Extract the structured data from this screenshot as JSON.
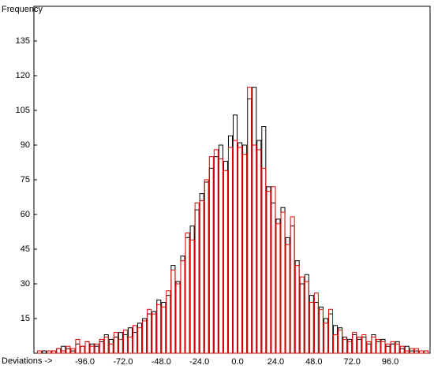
{
  "chart_data": {
    "type": "histogram",
    "ylabel": "Frequency",
    "xlabel": "Deviations ->",
    "bins": [
      -126,
      -123,
      -120,
      -117,
      -114,
      -111,
      -108,
      -105,
      -102,
      -99,
      -96,
      -93,
      -90,
      -87,
      -84,
      -81,
      -78,
      -75,
      -72,
      -69,
      -66,
      -63,
      -60,
      -57,
      -54,
      -51,
      -48,
      -45,
      -42,
      -39,
      -36,
      -33,
      -30,
      -27,
      -24,
      -21,
      -18,
      -15,
      -12,
      -9,
      -6,
      -3,
      0,
      3,
      6,
      9,
      12,
      15,
      18,
      21,
      24,
      27,
      30,
      33,
      36,
      39,
      42,
      45,
      48,
      51,
      54,
      57,
      60,
      63,
      66,
      69,
      72,
      75,
      78,
      81,
      84,
      87,
      90,
      93,
      96,
      99,
      102,
      105,
      108,
      111,
      114,
      117,
      120
    ],
    "series": [
      {
        "color": "#000000",
        "values": [
          0,
          1,
          0,
          1,
          2,
          3,
          2,
          1,
          4,
          3,
          5,
          4,
          3,
          5,
          8,
          6,
          7,
          9,
          8,
          11,
          9,
          13,
          15,
          17,
          18,
          23,
          22,
          25,
          38,
          31,
          42,
          50,
          55,
          62,
          69,
          74,
          80,
          85,
          90,
          83,
          94,
          103,
          91,
          90,
          110,
          115,
          92,
          98,
          72,
          65,
          58,
          63,
          50,
          55,
          40,
          30,
          34,
          25,
          22,
          20,
          15,
          17,
          12,
          11,
          7,
          6,
          8,
          6,
          7,
          4,
          8,
          5,
          6,
          3,
          4,
          5,
          2,
          3,
          1,
          1,
          0,
          1
        ],
        "outline": true
      },
      {
        "color": "#dd0000",
        "values": [
          1,
          0,
          1,
          1,
          2,
          1,
          3,
          2,
          6,
          3,
          5,
          3,
          4,
          6,
          7,
          4,
          9,
          6,
          10,
          7,
          12,
          11,
          14,
          19,
          17,
          21,
          20,
          27,
          36,
          30,
          40,
          52,
          49,
          65,
          66,
          75,
          85,
          88,
          84,
          79,
          89,
          92,
          89,
          86,
          115,
          90,
          88,
          80,
          70,
          72,
          56,
          61,
          47,
          59,
          38,
          33,
          31,
          22,
          26,
          19,
          13,
          19,
          8,
          10,
          6,
          5,
          9,
          7,
          8,
          5,
          7,
          6,
          5,
          4,
          5,
          4,
          3,
          1,
          2,
          2,
          1,
          1
        ],
        "outline": true
      }
    ],
    "xlim": [
      -128,
      121
    ],
    "ylim": [
      0,
      150
    ],
    "xticks": [
      {
        "value": -96,
        "label": "-96.0"
      },
      {
        "value": -72,
        "label": "-72.0"
      },
      {
        "value": -48,
        "label": "-48.0"
      },
      {
        "value": -24,
        "label": "-24.0"
      },
      {
        "value": 0,
        "label": "0.0"
      },
      {
        "value": 24,
        "label": "24.0"
      },
      {
        "value": 48,
        "label": "48.0"
      },
      {
        "value": 72,
        "label": "72.0"
      },
      {
        "value": 96,
        "label": "96.0"
      }
    ],
    "yticks": [
      15,
      30,
      45,
      60,
      75,
      90,
      105,
      120,
      135
    ],
    "grid": false
  }
}
